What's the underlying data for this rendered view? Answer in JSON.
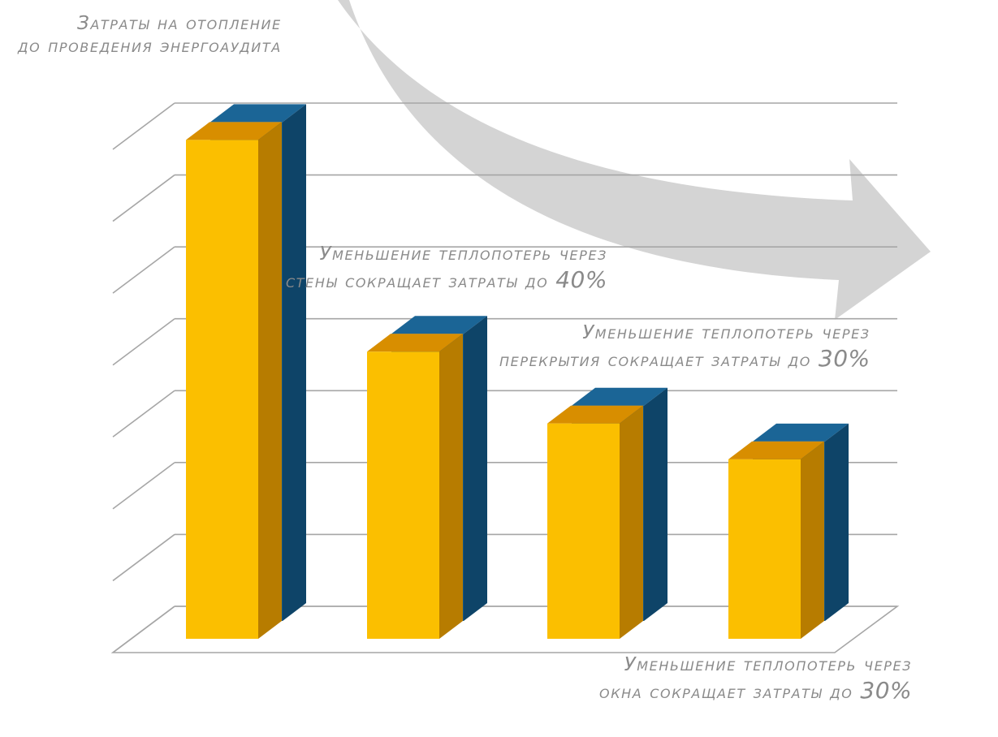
{
  "colors": {
    "bar_front": "#fbbf00",
    "bar_top": "#d88e00",
    "bar_side": "#b77c00",
    "back_front": "#135581",
    "back_top": "#1b6596",
    "back_side": "#0e4468",
    "grid": "#a6a6a6",
    "arrow": "#d2d2d2",
    "text": "#8a8a8a"
  },
  "chart_data": {
    "type": "bar",
    "style": "3d-clustered",
    "categories": [
      "",
      "",
      "",
      ""
    ],
    "ylim": [
      0,
      7
    ],
    "grid": true,
    "series": [
      {
        "values": [
          6.95,
          4.0,
          3.0,
          2.5
        ]
      },
      {
        "values": [
          6.95,
          4.0,
          3.0,
          2.5
        ]
      }
    ],
    "annotations": [
      {
        "lines": [
          "Затраты на отопление",
          "до проведения энергоаудита"
        ],
        "pct": ""
      },
      {
        "lines": [
          "Уменьшение теплопотерь через",
          "стены сокращает затраты до"
        ],
        "pct": "40%"
      },
      {
        "lines": [
          "Уменьшение теплопотерь через",
          "перекрытия сокращает затраты до"
        ],
        "pct": "30%"
      },
      {
        "lines": [
          "Уменьшение теплопотерь через",
          "окна сокращает затраты до"
        ],
        "pct": "30%"
      }
    ],
    "arrow": {
      "direction": "down-right",
      "meaning": "decrease"
    }
  }
}
